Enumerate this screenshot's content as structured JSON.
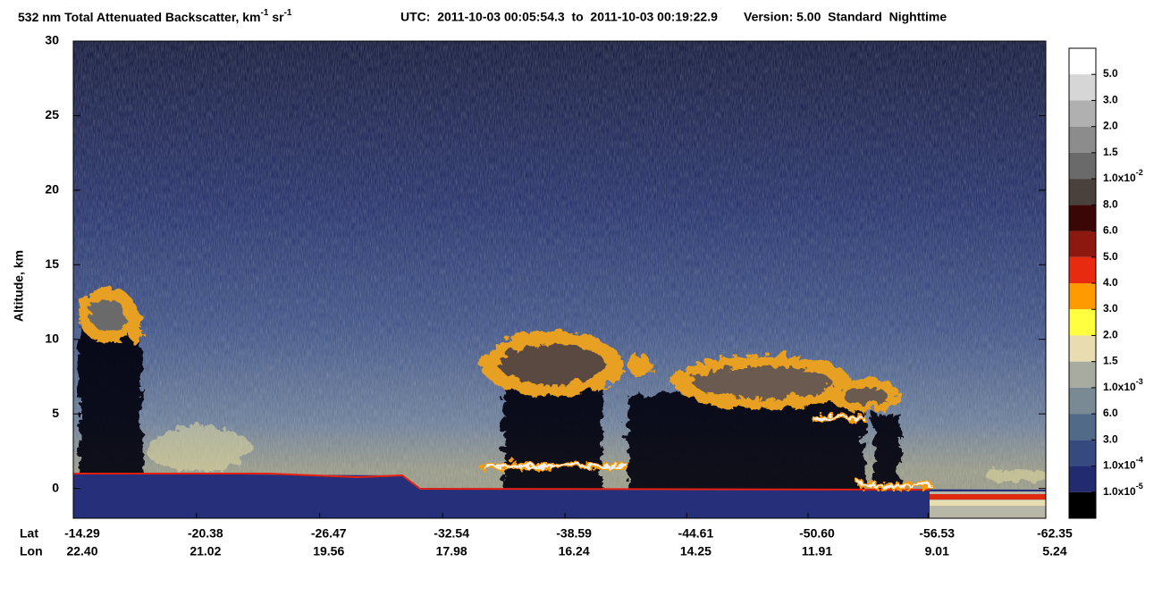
{
  "chart_data": {
    "type": "lidar-curtain",
    "title_parts": [
      {
        "text": "532 nm Total Attenuated Backscatter, km"
      },
      {
        "sup": "-1"
      },
      {
        "text": " sr"
      },
      {
        "sup": "-1"
      }
    ],
    "utc": "UTC:  2011-10-03 00:05:54.3  to  2011-10-03 00:19:22.9",
    "version": "Version: 5.00  Standard  Nighttime",
    "y_label": "Altitude, km",
    "ylim": [
      -2,
      30
    ],
    "yticks": [
      0,
      5,
      10,
      15,
      20,
      25,
      30
    ],
    "xlim": [
      -14.29,
      -62.35
    ],
    "x_row_labels": [
      "Lat",
      "Lon"
    ],
    "xticks": [
      {
        "value": -14.29,
        "label": "-14.29"
      },
      {
        "value": -20.38,
        "label": "-20.38"
      },
      {
        "value": -26.47,
        "label": "-26.47"
      },
      {
        "value": -32.54,
        "label": "-32.54"
      },
      {
        "value": -38.59,
        "label": "-38.59"
      },
      {
        "value": -44.61,
        "label": "-44.61"
      },
      {
        "value": -50.6,
        "label": "-50.60"
      },
      {
        "value": -56.53,
        "label": "-56.53"
      },
      {
        "value": -62.35,
        "label": "-62.35"
      }
    ],
    "lon_labels": [
      "22.40",
      "21.02",
      "19.56",
      "17.98",
      "16.24",
      "14.25",
      "11.91",
      "9.01",
      "5.24"
    ],
    "colorbar": {
      "colors": [
        "#ffffff",
        "#d6d6d6",
        "#b0b0b0",
        "#8c8c8c",
        "#6a6a6a",
        "#4a403c",
        "#3a0606",
        "#8c1810",
        "#e82a10",
        "#ff9a00",
        "#ffff40",
        "#e8dcb0",
        "#a8aca0",
        "#7a8a94",
        "#506a88",
        "#364a80",
        "#222a70",
        "#000000"
      ],
      "labels": [
        {
          "base": "5.0"
        },
        {
          "base": "3.0"
        },
        {
          "base": "2.0"
        },
        {
          "base": "1.5"
        },
        {
          "base": "1.0x10",
          "exp": "-2"
        },
        {
          "base": "8.0"
        },
        {
          "base": "6.0"
        },
        {
          "base": "5.0"
        },
        {
          "base": "4.0"
        },
        {
          "base": "3.0"
        },
        {
          "base": "2.0"
        },
        {
          "base": "1.5"
        },
        {
          "base": "1.0x10",
          "exp": "-3"
        },
        {
          "base": "6.0"
        },
        {
          "base": "3.0"
        },
        {
          "base": "1.0x10",
          "exp": "-4"
        },
        {
          "base": "1.0x10",
          "exp": "-5"
        }
      ]
    }
  }
}
